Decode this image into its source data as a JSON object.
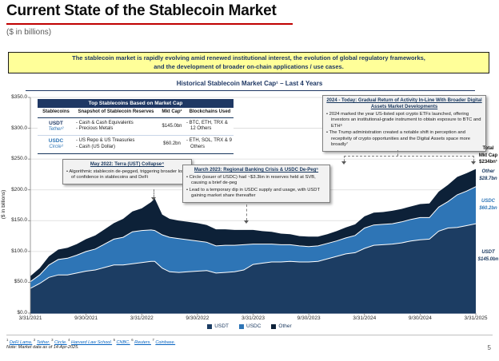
{
  "slide": {
    "title": "Current State of the Stablecoin Market",
    "subtitle": "($ in billions)",
    "page_number": "5",
    "accent_red": "#C00000",
    "navy": "#1F3864"
  },
  "banner": {
    "line1": "The stablecoin market is rapidly evolving amid renewed institutional interest, the evolution of global regulatory frameworks,",
    "line2": "and the development of broader on-chain applications / use cases.",
    "bg_color": "#FFFF99"
  },
  "table": {
    "title": "Top Stablecoins Based on Market Cap",
    "columns": [
      "Stablecoins",
      "Snapshot of Stablecoin Reserves",
      "Mkt Cap¹",
      "Blockchains Used"
    ],
    "rows": [
      {
        "ticker": "USDT",
        "issuer": "Tether²",
        "reserves": [
          "- Cash & Cash Equivalents",
          "- Precious Metals"
        ],
        "mkt_cap": "$145.0bn",
        "blockchains": "- BTC, ETH, TRX & 12 Others",
        "color": "#1F3864"
      },
      {
        "ticker": "USDC",
        "issuer": "Circle³",
        "reserves": [
          "- US Repo & US Treasuries",
          "- Cash (US Dollar)"
        ],
        "mkt_cap": "$60.2bn",
        "blockchains": "- ETH, SOL, TRX & 9 Others",
        "color": "#2E75B6"
      }
    ]
  },
  "callouts": [
    {
      "header": "May 2022: Terra (UST) Collapse⁴",
      "bullets": [
        "Algorithmic stablecoin de-pegged, triggering broader loss of confidence in stablecoins and DeFi"
      ]
    },
    {
      "header": "March 2023: Regional Banking Crisis & USDC De-Peg⁵",
      "bullets": [
        "Circle (issuer of USDC) had ~$3.3bn in reserves held at SVB, causing a brief de-peg",
        "Lead to a temporary dip in USDC supply and usage, with USDT gaining market share thereafter"
      ]
    },
    {
      "header": "2024 - Today: Gradual Return of Activity In-Line With Broader Digital Assets Market Developments",
      "bullets": [
        "2024 marked the year US-listed spot crypto ETFs launched, offering investors an institutional-grade instrument to obtain exposure to BTC and ETH⁶",
        "The Trump administration created a notable shift in perception and receptivity of crypto opportunities and the Digital Assets space more broadly⁷"
      ]
    }
  ],
  "annotations": {
    "total": [
      "Total",
      "Mkt Cap",
      "$234bn¹"
    ],
    "other": [
      "Other",
      "$28.7bn"
    ],
    "usdc": [
      "USDC",
      "$60.2bn"
    ],
    "usdt": [
      "USDT",
      "$145.0bn"
    ]
  },
  "chart_data": {
    "type": "area",
    "stacked": true,
    "title": "Historical Stablecoin Market Cap¹ – Last 4 Years",
    "ylabel": "($ in billions)",
    "ylim": [
      0,
      350
    ],
    "grid": true,
    "legend_position": "bottom",
    "y_ticks": [
      "$0.0",
      "$50.0",
      "$100.0",
      "$150.0",
      "$200.0",
      "$250.0",
      "$300.0",
      "$350.0"
    ],
    "x_tick_labels": [
      "3/31/2021",
      "9/30/2021",
      "3/31/2022",
      "9/30/2022",
      "3/31/2023",
      "9/30/2023",
      "3/31/2024",
      "9/30/2024",
      "3/31/2025"
    ],
    "x_tick_months": [
      0,
      6,
      12,
      18,
      24,
      30,
      36,
      42,
      48
    ],
    "x_span_months": 48,
    "x_months": [
      0,
      1,
      2,
      3,
      4,
      5,
      6,
      7,
      8,
      9,
      10,
      11,
      12,
      13,
      13.4,
      14.2,
      15,
      16,
      17,
      18,
      19,
      20,
      21,
      22,
      23,
      24,
      25,
      26,
      27,
      28,
      29,
      30,
      31,
      32,
      33,
      34,
      35,
      36,
      37,
      38,
      39,
      40,
      41,
      42,
      43,
      44,
      45,
      46,
      47,
      48
    ],
    "series": [
      {
        "name": "USDT",
        "color": "#1C3D63",
        "values": [
          40,
          48,
          58,
          62,
          62,
          65,
          68,
          70,
          74,
          78,
          78,
          80,
          82,
          84,
          84,
          73,
          67,
          66,
          67,
          68,
          69,
          65,
          66,
          67,
          70,
          79,
          81,
          83,
          83,
          84,
          83,
          83,
          84,
          88,
          92,
          96,
          98,
          105,
          110,
          111,
          112,
          114,
          117,
          119,
          120,
          133,
          138,
          139,
          142,
          145
        ]
      },
      {
        "name": "USDC",
        "color": "#2E75B6",
        "values": [
          11,
          14,
          20,
          25,
          27,
          29,
          32,
          34,
          38,
          42,
          45,
          52,
          52,
          51,
          50,
          54,
          56,
          55,
          52,
          49,
          46,
          44,
          44,
          43,
          41,
          33,
          31,
          29,
          28,
          27,
          26,
          25,
          25,
          25,
          25,
          26,
          28,
          33,
          33,
          33,
          33,
          34,
          35,
          36,
          35,
          39,
          43,
          53,
          56,
          60.2
        ]
      },
      {
        "name": "Other",
        "color": "#0D2138",
        "values": [
          9,
          11,
          14,
          16,
          17,
          18,
          20,
          22,
          24,
          26,
          30,
          33,
          36,
          45,
          52,
          33,
          30,
          29,
          29,
          29,
          28,
          27,
          26,
          25,
          24,
          23,
          21,
          20,
          18,
          17,
          16,
          16,
          15,
          15,
          16,
          17,
          18,
          19,
          20,
          20,
          21,
          21,
          21,
          22,
          23,
          25,
          27,
          29,
          29,
          28.7
        ]
      }
    ]
  },
  "footnotes": {
    "sources": [
      {
        "sup": "1",
        "label": "DeFi Lama."
      },
      {
        "sup": "2",
        "label": "Tether."
      },
      {
        "sup": "3",
        "label": "Circle."
      },
      {
        "sup": "4",
        "label": "Harvard Law School."
      },
      {
        "sup": "5",
        "label": "CNBC."
      },
      {
        "sup": "6",
        "label": "Reuters."
      },
      {
        "sup": "7",
        "label": "Coinbase."
      }
    ],
    "note": "Note: Market data as of 14-Apr-2025."
  }
}
